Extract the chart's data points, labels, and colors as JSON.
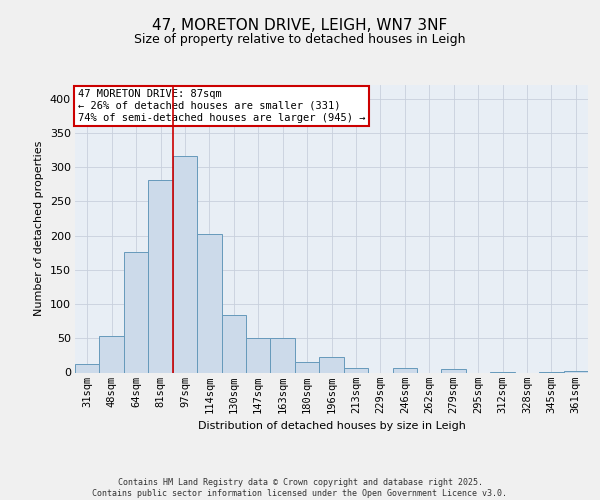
{
  "title": "47, MORETON DRIVE, LEIGH, WN7 3NF",
  "subtitle": "Size of property relative to detached houses in Leigh",
  "xlabel": "Distribution of detached houses by size in Leigh",
  "ylabel": "Number of detached properties",
  "categories": [
    "31sqm",
    "48sqm",
    "64sqm",
    "81sqm",
    "97sqm",
    "114sqm",
    "130sqm",
    "147sqm",
    "163sqm",
    "180sqm",
    "196sqm",
    "213sqm",
    "229sqm",
    "246sqm",
    "262sqm",
    "279sqm",
    "295sqm",
    "312sqm",
    "328sqm",
    "345sqm",
    "361sqm"
  ],
  "values": [
    12,
    54,
    176,
    281,
    317,
    203,
    84,
    51,
    50,
    15,
    23,
    7,
    0,
    6,
    0,
    5,
    0,
    1,
    0,
    1,
    2
  ],
  "bar_color": "#ccdaea",
  "bar_edge_color": "#6699bb",
  "grid_color": "#c8d0dc",
  "background_color": "#e8eef5",
  "fig_background_color": "#f0f0f0",
  "vline_x": 3.5,
  "vline_color": "#cc0000",
  "annotation_text": "47 MORETON DRIVE: 87sqm\n← 26% of detached houses are smaller (331)\n74% of semi-detached houses are larger (945) →",
  "annotation_box_color": "#ffffff",
  "annotation_box_edge_color": "#cc0000",
  "footer_text": "Contains HM Land Registry data © Crown copyright and database right 2025.\nContains public sector information licensed under the Open Government Licence v3.0.",
  "ylim": [
    0,
    420
  ],
  "yticks": [
    0,
    50,
    100,
    150,
    200,
    250,
    300,
    350,
    400
  ],
  "title_fontsize": 11,
  "subtitle_fontsize": 9,
  "ylabel_fontsize": 8,
  "xlabel_fontsize": 8,
  "tick_fontsize": 7.5,
  "footer_fontsize": 6,
  "annotation_fontsize": 7.5
}
